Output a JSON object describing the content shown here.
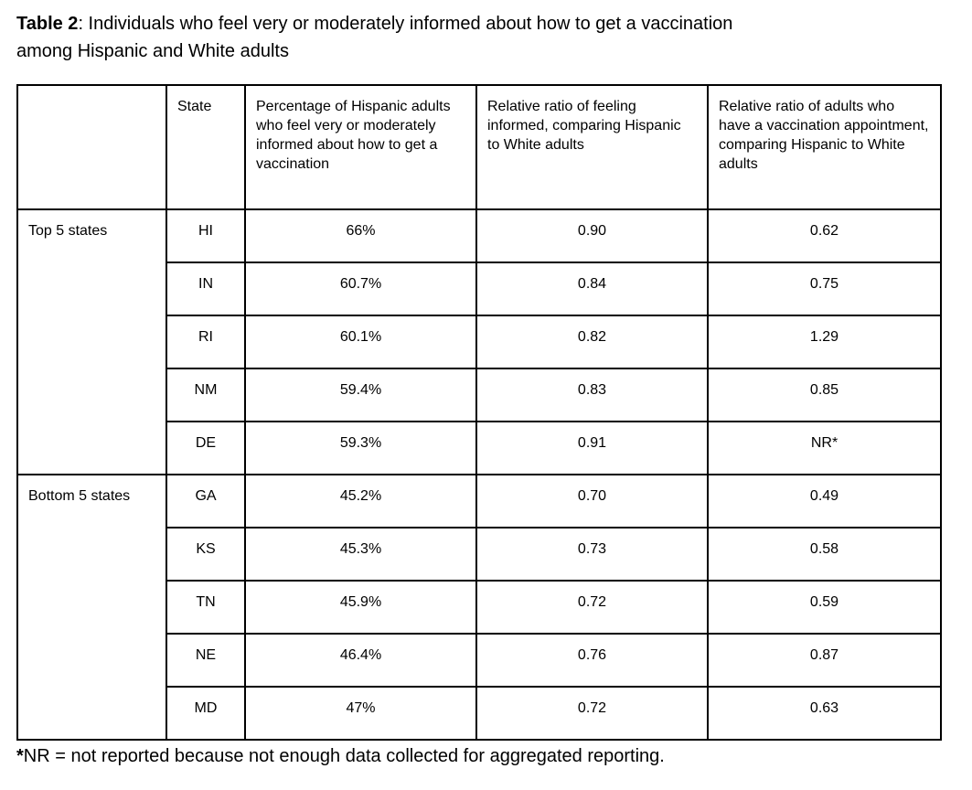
{
  "title": {
    "label": "Table 2",
    "text": ": Individuals who feel very or moderately informed about how to get a vaccination\namong Hispanic and White adults"
  },
  "table": {
    "headers": {
      "group": "",
      "state": "State",
      "pct_informed": "Percentage of Hispanic adults who feel very or moderately informed about how to get a vaccination",
      "rr_informed": "Relative ratio of feeling informed, comparing Hispanic to White adults",
      "rr_appointment": "Relative ratio of adults who have a vaccination appointment, comparing Hispanic to White adults"
    },
    "groups": [
      {
        "label": "Top 5 states",
        "rows": [
          {
            "state": "HI",
            "pct_informed": "66%",
            "rr_informed": "0.90",
            "rr_appointment": "0.62"
          },
          {
            "state": "IN",
            "pct_informed": "60.7%",
            "rr_informed": "0.84",
            "rr_appointment": "0.75"
          },
          {
            "state": "RI",
            "pct_informed": "60.1%",
            "rr_informed": "0.82",
            "rr_appointment": "1.29"
          },
          {
            "state": "NM",
            "pct_informed": "59.4%",
            "rr_informed": "0.83",
            "rr_appointment": "0.85"
          },
          {
            "state": "DE",
            "pct_informed": "59.3%",
            "rr_informed": "0.91",
            "rr_appointment": "NR*"
          }
        ]
      },
      {
        "label": "Bottom 5 states",
        "rows": [
          {
            "state": "GA",
            "pct_informed": "45.2%",
            "rr_informed": "0.70",
            "rr_appointment": "0.49"
          },
          {
            "state": "KS",
            "pct_informed": "45.3%",
            "rr_informed": "0.73",
            "rr_appointment": "0.58"
          },
          {
            "state": "TN",
            "pct_informed": "45.9%",
            "rr_informed": "0.72",
            "rr_appointment": "0.59"
          },
          {
            "state": "NE",
            "pct_informed": "46.4%",
            "rr_informed": "0.76",
            "rr_appointment": "0.87"
          },
          {
            "state": "MD",
            "pct_informed": "47%",
            "rr_informed": "0.72",
            "rr_appointment": "0.63"
          }
        ]
      }
    ]
  },
  "footnote": {
    "marker": "*",
    "text": "NR = not reported because not enough data collected for aggregated reporting."
  },
  "colors": {
    "background": "#ffffff",
    "text": "#000000",
    "border": "#000000"
  }
}
